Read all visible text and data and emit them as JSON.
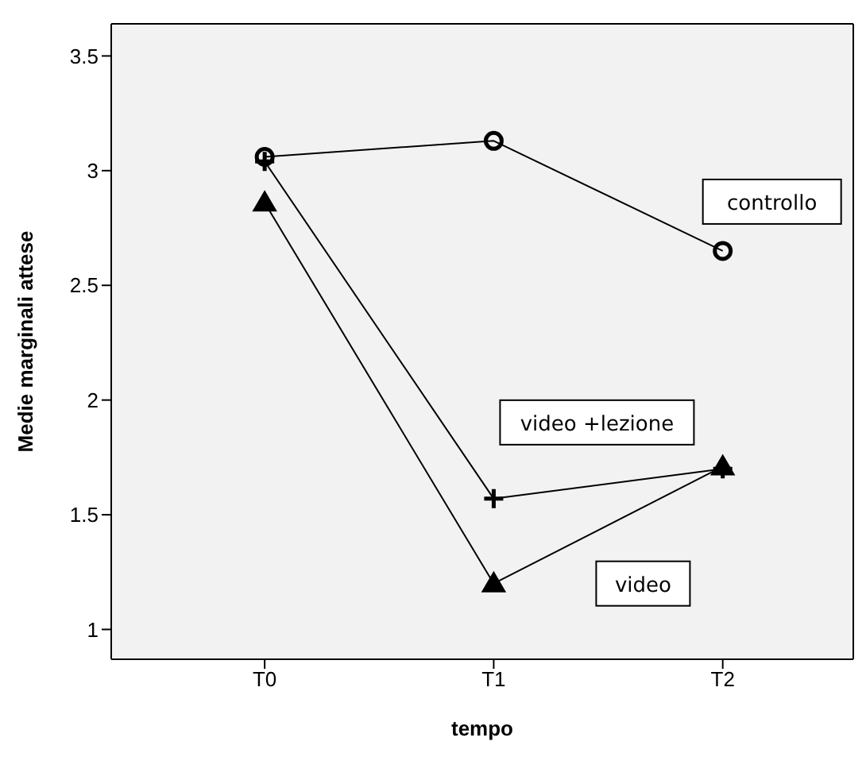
{
  "chart_data": {
    "type": "line",
    "xlabel": "tempo",
    "ylabel": "Medie marginali attese",
    "categories": [
      "T0",
      "T1",
      "T2"
    ],
    "ylim": [
      0.87,
      3.64
    ],
    "yticks": [
      1,
      1.5,
      2,
      2.5,
      3,
      3.5
    ],
    "grid": false,
    "legend": false,
    "series": [
      {
        "name": "controllo",
        "color": "#000000",
        "marker": "circle",
        "values": [
          3.06,
          3.13,
          2.65
        ]
      },
      {
        "name": "video +lezione",
        "color": "#000000",
        "marker": "cross",
        "values": [
          3.04,
          1.57,
          1.7
        ]
      },
      {
        "name": "video",
        "color": "#000000",
        "marker": "triangle",
        "values": [
          2.86,
          1.2,
          1.71
        ]
      }
    ]
  }
}
